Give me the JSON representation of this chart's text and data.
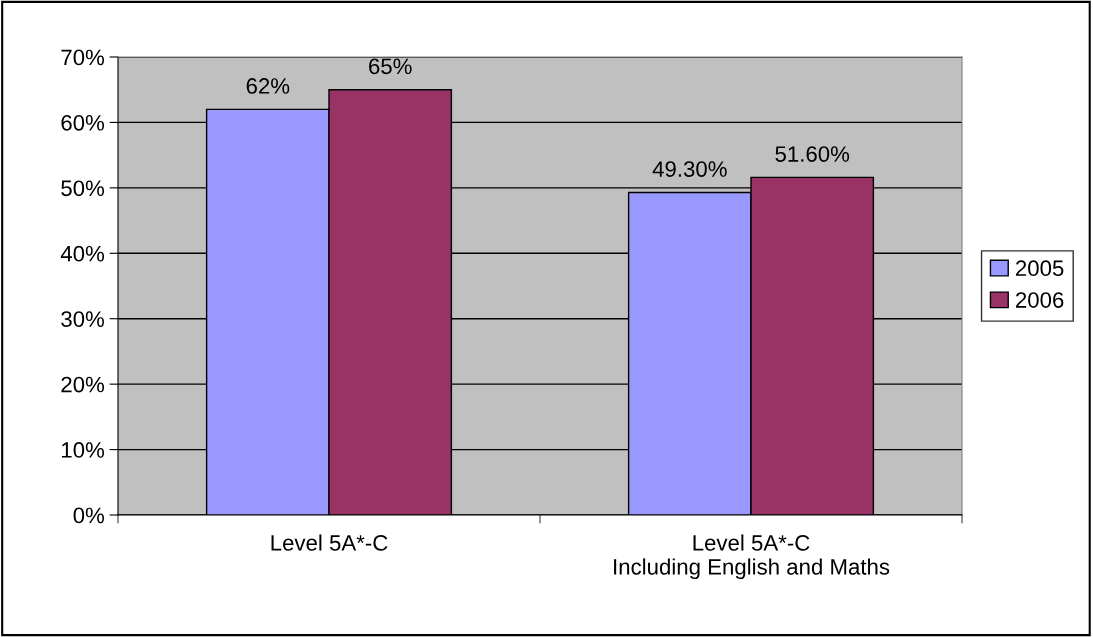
{
  "chart_data": {
    "type": "bar",
    "categories": [
      "Level 5A*-C",
      "Level 5A*-C\nIncluding English and Maths"
    ],
    "series": [
      {
        "name": "2005",
        "color": "#9999ff",
        "values": [
          62,
          49.3
        ],
        "value_labels": [
          "62%",
          "49.30%"
        ]
      },
      {
        "name": "2006",
        "color": "#993366",
        "values": [
          65,
          51.6
        ],
        "value_labels": [
          "65%",
          "51.60%"
        ]
      }
    ],
    "ylim": [
      0,
      70
    ],
    "yticks": [
      {
        "value": 0,
        "label": "0%"
      },
      {
        "value": 10,
        "label": "10%"
      },
      {
        "value": 20,
        "label": "20%"
      },
      {
        "value": 30,
        "label": "30%"
      },
      {
        "value": 40,
        "label": "40%"
      },
      {
        "value": 50,
        "label": "50%"
      },
      {
        "value": 60,
        "label": "60%"
      },
      {
        "value": 70,
        "label": "70%"
      }
    ],
    "grid": "y",
    "legend": "right"
  }
}
